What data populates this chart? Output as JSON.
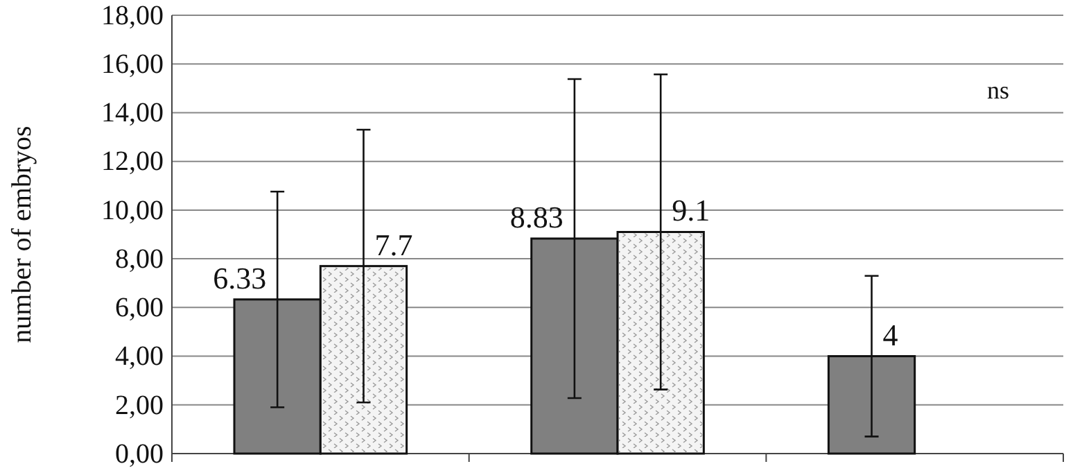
{
  "chart_data": {
    "type": "bar",
    "ylabel": "number of embryos",
    "categories": [
      null,
      null,
      null
    ],
    "series": [
      {
        "color": "#808080",
        "values": [
          6.33,
          8.83,
          4
        ],
        "errors": [
          4.43,
          6.55,
          3.3
        ]
      },
      {
        "color": "#f4f4f4",
        "values": [
          7.7,
          9.1,
          null
        ],
        "errors": [
          5.6,
          6.47,
          null
        ]
      }
    ],
    "ylim": [
      0,
      18
    ],
    "yticks": [
      {
        "value": 0,
        "label": "0,00"
      },
      {
        "value": 2,
        "label": "2,00"
      },
      {
        "value": 4,
        "label": "4,00"
      },
      {
        "value": 6,
        "label": "6,00"
      },
      {
        "value": 8,
        "label": "8,00"
      },
      {
        "value": 10,
        "label": "10,00"
      },
      {
        "value": 12,
        "label": "12,00"
      },
      {
        "value": 14,
        "label": "14,00"
      },
      {
        "value": 16,
        "label": "16,00"
      },
      {
        "value": 18,
        "label": "18,00"
      }
    ],
    "grid": "y",
    "data_labels": true,
    "annotations": [
      "ns"
    ]
  }
}
